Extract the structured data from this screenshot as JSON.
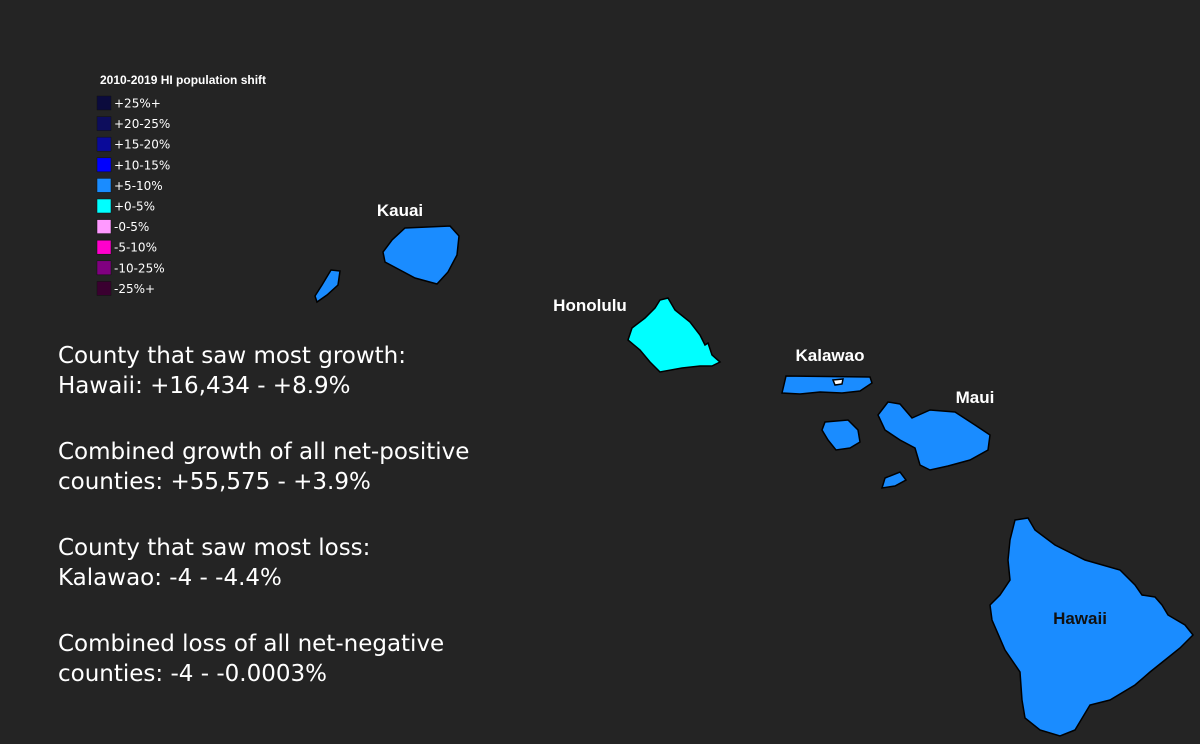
{
  "legend": {
    "title": "2010-2019 HI population shift",
    "items": [
      {
        "label": "+25%+",
        "color": "#0b0b3d"
      },
      {
        "label": "+20-25%",
        "color": "#0d0d5c"
      },
      {
        "label": "+15-20%",
        "color": "#0a0a99"
      },
      {
        "label": "+10-15%",
        "color": "#0000ff"
      },
      {
        "label": "+5-10%",
        "color": "#1a8cff"
      },
      {
        "label": "+0-5%",
        "color": "#00ffff"
      },
      {
        "label": "-0-5%",
        "color": "#ff99ff"
      },
      {
        "label": "-5-10%",
        "color": "#ff00cc"
      },
      {
        "label": "-10-25%",
        "color": "#800080"
      },
      {
        "label": "-25%+",
        "color": "#3a0030"
      }
    ]
  },
  "counties": {
    "kauai": "Kauai",
    "honolulu": "Honolulu",
    "kalawao": "Kalawao",
    "maui": "Maui",
    "hawaii": "Hawaii"
  },
  "stats": [
    {
      "lines": [
        "County that saw most growth:",
        "Hawaii: +16,434 - +8.9%"
      ]
    },
    {
      "lines": [
        "Combined growth of all net-positive",
        "counties: +55,575 - +3.9%"
      ]
    },
    {
      "lines": [
        "County that saw most loss:",
        "Kalawao: -4 - -4.4%"
      ]
    },
    {
      "lines": [
        "Combined loss of all net-negative",
        "counties: -4 - -0.0003%"
      ]
    }
  ]
}
